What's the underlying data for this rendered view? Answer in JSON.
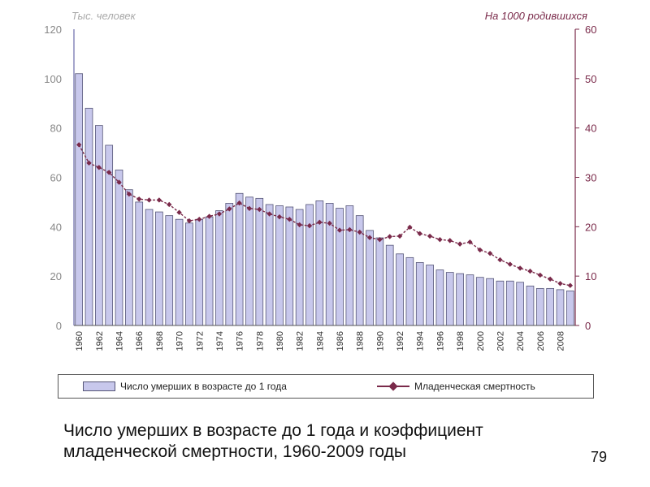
{
  "chart_data": {
    "type": "bar",
    "left_axis_title": "Тыс. человек",
    "right_axis_title": "На 1000 родившихся",
    "left_ylim": [
      0,
      120
    ],
    "right_ylim": [
      0,
      60
    ],
    "left_ticks": [
      0,
      20,
      40,
      60,
      80,
      100,
      120
    ],
    "right_ticks": [
      0,
      10,
      20,
      30,
      40,
      50,
      60
    ],
    "x_tick_labels": [
      "1960",
      "1962",
      "1964",
      "1966",
      "1968",
      "1970",
      "1972",
      "1974",
      "1976",
      "1978",
      "1980",
      "1982",
      "1984",
      "1986",
      "1988",
      "1990",
      "1992",
      "1994",
      "1996",
      "1998",
      "2000",
      "2002",
      "2004",
      "2006",
      "2008"
    ],
    "years": [
      1960,
      1961,
      1962,
      1963,
      1964,
      1965,
      1966,
      1967,
      1968,
      1969,
      1970,
      1971,
      1972,
      1973,
      1974,
      1975,
      1976,
      1977,
      1978,
      1979,
      1980,
      1981,
      1982,
      1983,
      1984,
      1985,
      1986,
      1987,
      1988,
      1989,
      1990,
      1991,
      1992,
      1993,
      1994,
      1995,
      1996,
      1997,
      1998,
      1999,
      2000,
      2001,
      2002,
      2003,
      2004,
      2005,
      2006,
      2007,
      2008,
      2009
    ],
    "grid": false,
    "legend_position": "bottom",
    "series": [
      {
        "name": "Число умерших в возрасте до 1 года",
        "type": "bar",
        "axis": "left",
        "color": "#c8c8ec",
        "values": [
          102,
          88,
          81,
          73,
          63,
          55,
          50,
          47,
          46,
          44.5,
          43,
          41.5,
          43,
          44,
          46.5,
          49.5,
          53.5,
          52,
          51.5,
          49,
          48.5,
          48,
          47,
          49,
          50.5,
          49.5,
          47.5,
          48.5,
          44.5,
          38.5,
          35.5,
          32.5,
          29,
          27.5,
          25.5,
          24.5,
          22.5,
          21.5,
          21,
          20.5,
          19.5,
          19,
          18,
          18,
          17.5,
          16,
          15,
          15,
          14.5,
          14
        ]
      },
      {
        "name": "Младенческая смертность",
        "type": "line",
        "axis": "right",
        "color": "#7a2a4a",
        "values": [
          36.6,
          32.9,
          32,
          31,
          29,
          26.6,
          25.6,
          25.4,
          25.4,
          24.5,
          22.9,
          21.2,
          21.5,
          22.1,
          22.6,
          23.6,
          24.8,
          23.7,
          23.5,
          22.6,
          22,
          21.5,
          20.4,
          20.2,
          20.9,
          20.7,
          19.3,
          19.4,
          18.9,
          17.8,
          17.4,
          18,
          18.1,
          19.9,
          18.6,
          18.1,
          17.4,
          17.2,
          16.5,
          16.9,
          15.3,
          14.6,
          13.3,
          12.4,
          11.6,
          11,
          10.2,
          9.4,
          8.5,
          8.1
        ]
      }
    ]
  },
  "legend": {
    "bars_label": "Число умерших в возрасте до 1 года",
    "line_label": "Младенческая смертность"
  },
  "caption": "Число умерших в возрасте до 1 года и коэффициент младенческой смертности, 1960-2009 годы",
  "page_number": "79"
}
